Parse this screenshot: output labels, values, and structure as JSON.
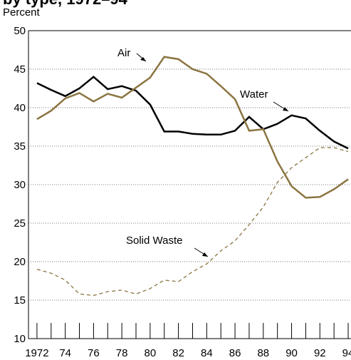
{
  "chart_data": {
    "type": "line",
    "title": "by type, 1972–94",
    "y_label": "Percent",
    "x": [
      1972,
      1973,
      1974,
      1975,
      1976,
      1977,
      1978,
      1979,
      1980,
      1981,
      1982,
      1983,
      1984,
      1985,
      1986,
      1987,
      1988,
      1989,
      1990,
      1991,
      1992,
      1993,
      1994
    ],
    "series": [
      {
        "name": "Water",
        "color": "#000000",
        "dashed": false,
        "values": [
          43.2,
          42.3,
          41.5,
          42.5,
          44.0,
          42.4,
          42.8,
          42.2,
          40.4,
          36.9,
          36.9,
          36.6,
          36.5,
          36.5,
          37.0,
          38.8,
          37.2,
          37.9,
          39.0,
          38.6,
          37.0,
          35.6,
          34.7
        ]
      },
      {
        "name": "Air",
        "color": "#8b7440",
        "dashed": false,
        "values": [
          38.5,
          39.6,
          41.2,
          41.9,
          40.8,
          41.8,
          41.3,
          42.6,
          43.9,
          46.6,
          46.3,
          45.0,
          44.4,
          42.8,
          41.1,
          37.0,
          37.2,
          33.0,
          29.8,
          28.3,
          28.4,
          29.4,
          30.7
        ]
      },
      {
        "name": "Solid Waste",
        "color": "#8b7440",
        "dashed": true,
        "values": [
          19.0,
          18.5,
          17.6,
          15.8,
          15.6,
          16.1,
          16.3,
          15.8,
          16.5,
          17.6,
          17.4,
          18.7,
          19.7,
          21.4,
          22.7,
          24.8,
          27.1,
          30.3,
          32.2,
          33.5,
          34.8,
          34.8,
          34.3
        ]
      }
    ],
    "xlim": [
      1971.4,
      1994.2
    ],
    "ylim": [
      10,
      50
    ],
    "yticks": [
      10,
      15,
      20,
      25,
      30,
      35,
      40,
      45,
      50
    ],
    "xticks": [
      1972,
      {
        "value": 1974,
        "label": "74"
      },
      {
        "value": 1976,
        "label": "76"
      },
      {
        "value": 1978,
        "label": "78"
      },
      {
        "value": 1980,
        "label": "80"
      },
      {
        "value": 1982,
        "label": "82"
      },
      {
        "value": 1984,
        "label": "84"
      },
      {
        "value": 1986,
        "label": "86"
      },
      {
        "value": 1988,
        "label": "88"
      },
      {
        "value": 1990,
        "label": "90"
      },
      {
        "value": 1992,
        "label": "92"
      },
      {
        "value": 1994,
        "label": "94"
      }
    ],
    "x_minor_ticks": [
      1972,
      1973,
      1974,
      1975,
      1976,
      1977,
      1978,
      1979,
      1980,
      1981,
      1982,
      1983,
      1984,
      1985,
      1986,
      1987,
      1988,
      1989,
      1990,
      1991,
      1992,
      1993,
      1994
    ],
    "grid": true
  }
}
